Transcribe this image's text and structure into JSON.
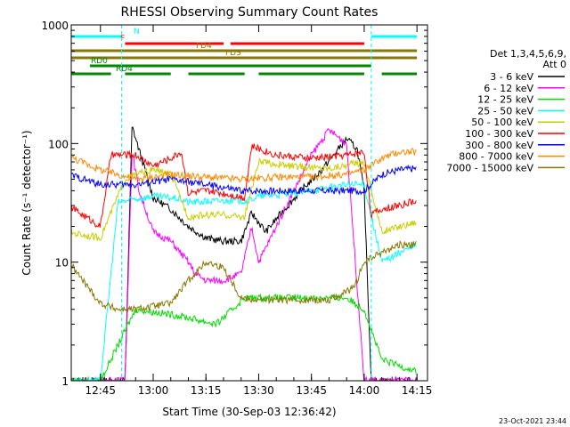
{
  "chart_data": {
    "type": "line",
    "title": "RHESSI Observing Summary Count Rates",
    "xlabel": "Start Time (30-Sep-03 12:36:42)",
    "ylabel": "Count Rate (s⁻¹ detector⁻¹)",
    "y_scale": "log",
    "ylim": [
      1,
      1000
    ],
    "xlim": [
      "12:36:42",
      "14:18:00"
    ],
    "x_ticks": [
      "12:45",
      "13:00",
      "13:15",
      "13:30",
      "13:45",
      "14:00",
      "14:15"
    ],
    "y_ticks": [
      "1",
      "10",
      "100",
      "1000"
    ],
    "grid": false,
    "legend_position": "right",
    "legend_header": [
      "Det 1,3,4,5,6,9,",
      "Att 0"
    ],
    "timestamp": "23-Oct-2021 23:44",
    "series": [
      {
        "name": "3 - 6 keV",
        "color": "#000000",
        "x": [
          "12:36",
          "12:48",
          "12:52",
          "12:54",
          "12:57",
          "13:00",
          "13:05",
          "13:10",
          "13:15",
          "13:20",
          "13:25",
          "13:28",
          "13:32",
          "13:36",
          "13:42",
          "13:48",
          "13:55",
          "13:58",
          "14:00",
          "14:02",
          "14:05",
          "14:10",
          "14:15"
        ],
        "values": [
          1,
          1,
          1,
          140,
          70,
          35,
          28,
          20,
          16,
          15,
          15,
          26,
          18,
          25,
          40,
          60,
          110,
          90,
          40,
          1,
          1,
          1,
          1
        ]
      },
      {
        "name": "6 - 12 keV",
        "color": "#ff00ff",
        "x": [
          "12:36",
          "12:52",
          "12:54",
          "12:56",
          "13:00",
          "13:05",
          "13:10",
          "13:12",
          "13:15",
          "13:20",
          "13:25",
          "13:28",
          "13:30",
          "13:35",
          "13:40",
          "13:45",
          "13:50",
          "13:55",
          "14:00",
          "14:05",
          "14:15"
        ],
        "values": [
          1,
          1,
          85,
          40,
          18,
          15,
          10,
          8,
          7,
          7,
          8,
          20,
          10,
          20,
          40,
          80,
          130,
          100,
          1,
          1,
          1
        ]
      },
      {
        "name": "12 - 25 keV",
        "color": "#00dd00",
        "x": [
          "12:36",
          "12:45",
          "12:55",
          "13:08",
          "13:18",
          "13:26",
          "13:40",
          "13:55",
          "14:00",
          "14:05",
          "14:15"
        ],
        "values": [
          1,
          1,
          4,
          3.5,
          3,
          5,
          5,
          5,
          4,
          1.5,
          1.2
        ]
      },
      {
        "name": "25 - 50 keV",
        "color": "#00ffff",
        "x": [
          "12:36",
          "12:45",
          "12:50",
          "13:00",
          "13:08",
          "13:10",
          "13:20",
          "13:27",
          "13:30",
          "13:40",
          "13:55",
          "14:00",
          "14:05",
          "14:10",
          "14:15"
        ],
        "values": [
          1,
          1,
          32,
          36,
          34,
          32,
          33,
          33,
          36,
          38,
          45,
          45,
          10,
          12,
          14
        ]
      },
      {
        "name": "50 - 100 keV",
        "color": "#cccc00",
        "x": [
          "12:36",
          "12:40",
          "12:45",
          "12:52",
          "12:55",
          "13:00",
          "13:05",
          "13:10",
          "13:15",
          "13:20",
          "13:26",
          "13:30",
          "13:40",
          "13:50",
          "14:00",
          "14:05",
          "14:10",
          "14:15"
        ],
        "values": [
          18,
          17,
          16,
          50,
          55,
          60,
          55,
          24,
          25,
          25,
          24,
          70,
          64,
          62,
          70,
          18,
          20,
          22
        ]
      },
      {
        "name": "100 - 300 keV",
        "color": "#ff0000",
        "x": [
          "12:36",
          "12:40",
          "12:45",
          "12:48",
          "12:55",
          "13:00",
          "13:05",
          "13:08",
          "13:10",
          "13:15",
          "13:20",
          "13:26",
          "13:28",
          "13:35",
          "13:45",
          "13:55",
          "14:00",
          "14:02",
          "14:05",
          "14:10",
          "14:15"
        ],
        "values": [
          30,
          25,
          20,
          80,
          80,
          65,
          75,
          85,
          38,
          40,
          38,
          35,
          95,
          80,
          75,
          80,
          85,
          25,
          28,
          30,
          33
        ]
      },
      {
        "name": "300 - 800 keV",
        "color": "#0000ff",
        "x": [
          "12:36",
          "12:45",
          "12:55",
          "13:05",
          "13:15",
          "13:25",
          "13:35",
          "13:45",
          "13:55",
          "14:00",
          "14:05",
          "14:10",
          "14:15"
        ],
        "values": [
          55,
          45,
          45,
          50,
          45,
          40,
          40,
          40,
          40,
          40,
          55,
          60,
          62
        ]
      },
      {
        "name": "800 - 7000 keV",
        "color": "#ff8800",
        "x": [
          "12:36",
          "12:45",
          "12:55",
          "13:05",
          "13:15",
          "13:25",
          "13:35",
          "13:45",
          "13:55",
          "14:00",
          "14:05",
          "14:10",
          "14:15"
        ],
        "values": [
          78,
          60,
          50,
          55,
          52,
          50,
          52,
          52,
          55,
          60,
          75,
          85,
          85
        ]
      },
      {
        "name": "7000 - 15000 keV",
        "color": "#887700",
        "x": [
          "12:36",
          "12:40",
          "12:45",
          "12:50",
          "12:55",
          "13:05",
          "13:10",
          "13:15",
          "13:20",
          "13:25",
          "13:30",
          "13:40",
          "13:50",
          "13:57",
          "14:00",
          "14:05",
          "14:10",
          "14:15"
        ],
        "values": [
          10,
          7,
          4.5,
          4,
          4,
          4.5,
          7,
          10,
          9,
          5,
          4.8,
          4.8,
          4.8,
          6,
          10,
          12,
          14,
          14
        ]
      }
    ],
    "state_bars": [
      {
        "label": "N",
        "color": "#00ffff",
        "segments": [
          [
            "12:36",
            "12:51"
          ],
          [
            "14:02",
            "14:15"
          ]
        ]
      },
      {
        "label": "F",
        "color": "#ff0000",
        "segments": [
          [
            "12:52",
            "13:20"
          ],
          [
            "13:22",
            "14:00"
          ]
        ]
      },
      {
        "label": "FD4",
        "color": "#887700",
        "segments": [
          [
            "12:36",
            "14:15"
          ]
        ]
      },
      {
        "label": "FDS",
        "color": "#887700",
        "segments": [
          [
            "12:36",
            "14:15"
          ]
        ]
      },
      {
        "label": "RD0",
        "color": "#008800",
        "segments": [
          [
            "12:42",
            "14:02"
          ]
        ]
      },
      {
        "label": "RD4",
        "color": "#008800",
        "segments": [
          [
            "12:36",
            "12:48"
          ],
          [
            "12:52",
            "13:05"
          ],
          [
            "13:10",
            "13:26"
          ],
          [
            "13:30",
            "14:00"
          ],
          [
            "14:05",
            "14:15"
          ]
        ]
      }
    ],
    "vlines": [
      {
        "time": "12:51",
        "color": "#00ffff"
      },
      {
        "time": "14:02",
        "color": "#00ffff"
      }
    ]
  }
}
